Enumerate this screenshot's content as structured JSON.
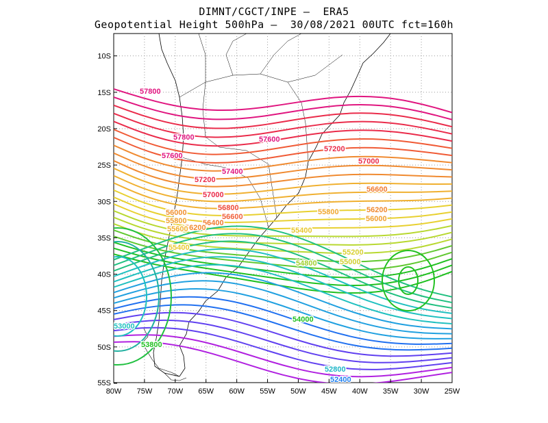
{
  "title_line1": "DIMNT/CGCT/INPE –  ERA5",
  "title_line2": "Geopotential Height 500hPa –  30/08/2021 00UTC fct=160h",
  "lat_ticks": [
    "10S",
    "15S",
    "20S",
    "25S",
    "30S",
    "35S",
    "40S",
    "45S",
    "50S",
    "55S"
  ],
  "lon_ticks": [
    "80W",
    "75W",
    "70W",
    "65W",
    "60W",
    "55W",
    "50W",
    "45W",
    "40W",
    "35W",
    "30W",
    "25W"
  ],
  "contour_labels": [
    {
      "text": "57800",
      "color": "#e0157f"
    },
    {
      "text": "57800",
      "color": "#e0157f"
    },
    {
      "text": "57600",
      "color": "#e0157f"
    },
    {
      "text": "57600",
      "color": "#e0157f"
    },
    {
      "text": "57400",
      "color": "#e0157f"
    },
    {
      "text": "57200",
      "color": "#ea2b4a"
    },
    {
      "text": "57200",
      "color": "#ea2b4a"
    },
    {
      "text": "57000",
      "color": "#ea2b4a"
    },
    {
      "text": "57000",
      "color": "#ea2b4a"
    },
    {
      "text": "56800",
      "color": "#ee4a3a"
    },
    {
      "text": "56600",
      "color": "#f0603a"
    },
    {
      "text": "56600",
      "color": "#f07a30"
    },
    {
      "text": "56400",
      "color": "#f07a30"
    },
    {
      "text": "56200",
      "color": "#f08a30"
    },
    {
      "text": "56200",
      "color": "#f08a30"
    },
    {
      "text": "56000",
      "color": "#f09030"
    },
    {
      "text": "56000",
      "color": "#f0a030"
    },
    {
      "text": "55800",
      "color": "#f0a030"
    },
    {
      "text": "55800",
      "color": "#f0a830"
    },
    {
      "text": "55600",
      "color": "#f0b030"
    },
    {
      "text": "55400",
      "color": "#e8c830"
    },
    {
      "text": "55400",
      "color": "#e8c830"
    },
    {
      "text": "55200",
      "color": "#d8d030"
    },
    {
      "text": "55000",
      "color": "#d0d030"
    },
    {
      "text": "54800",
      "color": "#a0d030"
    },
    {
      "text": "54000",
      "color": "#20c020"
    },
    {
      "text": "53800",
      "color": "#20c020"
    },
    {
      "text": "53000",
      "color": "#20c0c0"
    },
    {
      "text": "52800",
      "color": "#20b8c8"
    },
    {
      "text": "52400",
      "color": "#2080f0"
    }
  ],
  "colors": {
    "pink": "#e0157f",
    "red": "#ea2b4a",
    "orange": "#f07a30",
    "yellow": "#e8c830",
    "lightgreen": "#a0d030",
    "green": "#20c020",
    "cyan": "#20c0c0",
    "blue": "#2070f0",
    "purple": "#b020e0",
    "grid": "#9a9a9a",
    "coast": "#000000"
  }
}
